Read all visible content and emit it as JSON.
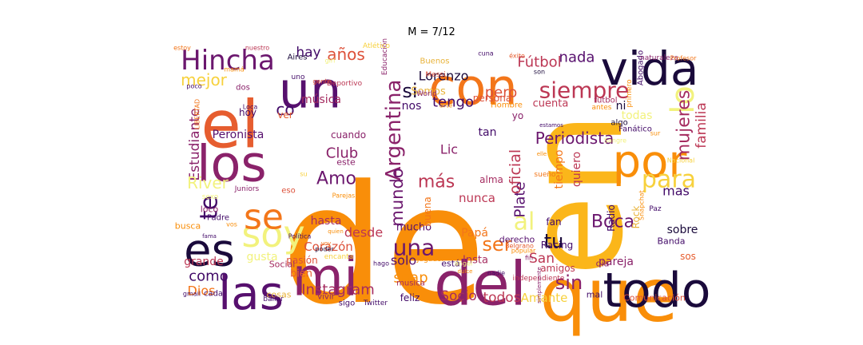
{
  "title": "M = 7/12",
  "palette": [
    "#f98e09",
    "#f7d13d",
    "#f2f27d",
    "#e8b33a",
    "#fbb61a",
    "#bc3754",
    "#e65d2f",
    "#8a226a",
    "#57106e",
    "#1a0a3b",
    "#6b176e",
    "#dd513a",
    "#f3761a",
    "#a52c60",
    "#420a68"
  ],
  "words": [
    {
      "text": "de",
      "color": "#f98e09",
      "rotate": false
    },
    {
      "text": "en",
      "color": "#fbb61a",
      "rotate": true
    },
    {
      "text": "que",
      "color": "#f98e09",
      "rotate": false
    },
    {
      "text": "el",
      "color": "#e65d2f",
      "rotate": false
    },
    {
      "text": "los",
      "color": "#8a226a",
      "rotate": false
    },
    {
      "text": "con",
      "color": "#f3761a",
      "rotate": false
    },
    {
      "text": "vida",
      "color": "#1a0a3b",
      "rotate": false
    },
    {
      "text": "un",
      "color": "#57106e",
      "rotate": false
    },
    {
      "text": "mi",
      "color": "#8a226a",
      "rotate": false
    },
    {
      "text": "las",
      "color": "#57106e",
      "rotate": false
    },
    {
      "text": "del",
      "color": "#8a226a",
      "rotate": false
    },
    {
      "text": "todo",
      "color": "#1a0a3b",
      "rotate": false
    },
    {
      "text": "por",
      "color": "#f98e09",
      "rotate": false
    },
    {
      "text": "es",
      "color": "#1a0a3b",
      "rotate": false
    },
    {
      "text": "soy",
      "color": "#f2f27d",
      "rotate": false
    },
    {
      "text": "se",
      "color": "#f3761a",
      "rotate": false
    },
    {
      "text": "lo",
      "color": "#f2f27d",
      "rotate": true
    },
    {
      "text": "para",
      "color": "#f7d13d",
      "rotate": false
    },
    {
      "text": "siempre",
      "color": "#bc3754",
      "rotate": false
    },
    {
      "text": "Hincha",
      "color": "#6b176e",
      "rotate": false
    },
    {
      "text": "Argentina",
      "color": "#8a226a",
      "rotate": true
    },
    {
      "text": "te",
      "color": "#420a68",
      "rotate": true
    },
    {
      "text": "una",
      "color": "#6b176e",
      "rotate": false
    },
    {
      "text": "Instagram",
      "color": "#a52c60",
      "rotate": false
    },
    {
      "text": "snap",
      "color": "#f98e09",
      "rotate": false
    },
    {
      "text": "sin",
      "color": "#8a226a",
      "rotate": false
    },
    {
      "text": "Boca",
      "color": "#6b176e",
      "rotate": false
    },
    {
      "text": "Amo",
      "color": "#6b176e",
      "rotate": false
    },
    {
      "text": "más",
      "color": "#bc3754",
      "rotate": false
    },
    {
      "text": "al",
      "color": "#f2f27d",
      "rotate": false
    },
    {
      "text": "tu",
      "color": "#1a0a3b",
      "rotate": false
    },
    {
      "text": "ser",
      "color": "#f3761a",
      "rotate": false
    },
    {
      "text": "si",
      "color": "#1a0a3b",
      "rotate": false
    },
    {
      "text": "Lorenzo",
      "color": "#1a0a3b",
      "rotate": false
    },
    {
      "text": "años",
      "color": "#dd513a",
      "rotate": false
    },
    {
      "text": "hay",
      "color": "#420a68",
      "rotate": false
    },
    {
      "text": "mejor",
      "color": "#f7d13d",
      "rotate": false
    },
    {
      "text": "Estudiante",
      "color": "#8a226a",
      "rotate": true
    },
    {
      "text": "River",
      "color": "#f2f27d",
      "rotate": false
    },
    {
      "text": "Club",
      "color": "#8a226a",
      "rotate": false
    },
    {
      "text": "Periodista",
      "color": "#6b176e",
      "rotate": false
    },
    {
      "text": "Fútbol",
      "color": "#bc3754",
      "rotate": false
    },
    {
      "text": "nada",
      "color": "#57106e",
      "rotate": false
    },
    {
      "text": "tengo",
      "color": "#420a68",
      "rotate": false
    },
    {
      "text": "pero",
      "color": "#dd513a",
      "rotate": false
    },
    {
      "text": "co",
      "color": "#420a68",
      "rotate": false
    },
    {
      "text": "mujeres",
      "color": "#a52c60",
      "rotate": true
    },
    {
      "text": "familia",
      "color": "#bc3754",
      "rotate": true
    },
    {
      "text": "mundo",
      "color": "#6b176e",
      "rotate": true
    },
    {
      "text": "Plate",
      "color": "#57106e",
      "rotate": true
    },
    {
      "text": "oficial",
      "color": "#bc3754",
      "rotate": true
    },
    {
      "text": "Corazón",
      "color": "#dd513a",
      "rotate": false
    },
    {
      "text": "desde",
      "color": "#bc3754",
      "rotate": false
    },
    {
      "text": "como",
      "color": "#420a68",
      "rotate": false
    },
    {
      "text": "Dios",
      "color": "#f3761a",
      "rotate": false
    },
    {
      "text": "Socio",
      "color": "#a52c60",
      "rotate": false
    },
    {
      "text": "todos",
      "color": "#bc3754",
      "rotate": false
    },
    {
      "text": "Amante",
      "color": "#f7d13d",
      "rotate": false
    },
    {
      "text": "solo",
      "color": "#57106e",
      "rotate": false
    },
    {
      "text": "San",
      "color": "#bc3754",
      "rotate": false
    },
    {
      "text": "hasta",
      "color": "#a52c60",
      "rotate": false
    },
    {
      "text": "nunca",
      "color": "#bc3754",
      "rotate": false
    },
    {
      "text": "mas",
      "color": "#420a68",
      "rotate": false
    },
    {
      "text": "sobre",
      "color": "#1a0a3b",
      "rotate": false
    },
    {
      "text": "música",
      "color": "#a52c60",
      "rotate": false
    },
    {
      "text": "tiempo",
      "color": "#f3761a",
      "rotate": true
    },
    {
      "text": "quiero",
      "color": "#bc3754",
      "rotate": true
    },
    {
      "text": "Peronista",
      "color": "#57106e",
      "rotate": false
    },
    {
      "text": "gusta",
      "color": "#f2f27d",
      "rotate": false
    },
    {
      "text": "grande",
      "color": "#bc3754",
      "rotate": false
    },
    {
      "text": "pareja",
      "color": "#8a226a",
      "rotate": false
    },
    {
      "text": "Rock",
      "color": "#e8b33a",
      "rotate": true
    },
    {
      "text": "Radio",
      "color": "#420a68",
      "rotate": true
    },
    {
      "text": "cuenta",
      "color": "#bc3754",
      "rotate": false
    },
    {
      "text": "todas",
      "color": "#f2f27d",
      "rotate": false
    },
    {
      "text": "ni",
      "color": "#1a0a3b",
      "rotate": false
    },
    {
      "text": "Lic",
      "color": "#8a226a",
      "rotate": false
    },
    {
      "text": "tan",
      "color": "#420a68",
      "rotate": false
    },
    {
      "text": "yo",
      "color": "#8a226a",
      "rotate": false
    },
    {
      "text": "nos",
      "color": "#420a68",
      "rotate": false
    },
    {
      "text": "Somos",
      "color": "#e8b33a",
      "rotate": false
    },
    {
      "text": "mucho",
      "color": "#57106e",
      "rotate": false
    },
    {
      "text": "buena",
      "color": "#f3761a",
      "rotate": true
    },
    {
      "text": "Papá",
      "color": "#f3761a",
      "rotate": false
    },
    {
      "text": "Insta",
      "color": "#a52c60",
      "rotate": false
    },
    {
      "text": "fan",
      "color": "#420a68",
      "rotate": false
    },
    {
      "text": "amigos",
      "color": "#bc3754",
      "rotate": false
    },
    {
      "text": "alma",
      "color": "#a52c60",
      "rotate": false
    },
    {
      "text": "Racing",
      "color": "#420a68",
      "rotate": false
    },
    {
      "text": "persona",
      "color": "#dd513a",
      "rotate": false
    },
    {
      "text": "cuando",
      "color": "#8a226a",
      "rotate": false
    },
    {
      "text": "este",
      "color": "#8a226a",
      "rotate": false
    },
    {
      "text": "sigo",
      "color": "#420a68",
      "rotate": false
    },
    {
      "text": "hoy",
      "color": "#420a68",
      "rotate": false
    },
    {
      "text": "ver",
      "color": "#e65d2f",
      "rotate": false
    },
    {
      "text": "loco",
      "color": "#8a226a",
      "rotate": false
    },
    {
      "text": "Padre",
      "color": "#420a68",
      "rotate": false
    },
    {
      "text": "bien",
      "color": "#e65d2f",
      "rotate": false
    },
    {
      "text": "pasión",
      "color": "#dd513a",
      "rotate": false
    },
    {
      "text": "Social",
      "color": "#a52c60",
      "rotate": false
    },
    {
      "text": "cosas",
      "color": "#e8b33a",
      "rotate": false
    },
    {
      "text": "vivir",
      "color": "#8a226a",
      "rotate": false
    },
    {
      "text": "feliz",
      "color": "#420a68",
      "rotate": false
    },
    {
      "text": "mal",
      "color": "#420a68",
      "rotate": false
    },
    {
      "text": "Comunicación",
      "color": "#dd513a",
      "rotate": false
    },
    {
      "text": "día",
      "color": "#8a226a",
      "rotate": false
    },
    {
      "text": "derecho",
      "color": "#57106e",
      "rotate": false
    },
    {
      "text": "está",
      "color": "#420a68",
      "rotate": false
    },
    {
      "text": "Banda",
      "color": "#420a68",
      "rotate": false
    },
    {
      "text": "sos",
      "color": "#e65d2f",
      "rotate": false
    },
    {
      "text": "busca",
      "color": "#f98e09",
      "rotate": false
    },
    {
      "text": "Abogado",
      "color": "#420a68",
      "rotate": true
    },
    {
      "text": "Aires",
      "color": "#1a0a3b",
      "rotate": false
    },
    {
      "text": "Buenos",
      "color": "#e8b33a",
      "rotate": false
    },
    {
      "text": "Messi",
      "color": "#dd513a",
      "rotate": false
    },
    {
      "text": "dos",
      "color": "#8a226a",
      "rotate": false
    },
    {
      "text": "Hombre",
      "color": "#f98e09",
      "rotate": false
    },
    {
      "text": "futbol",
      "color": "#a52c60",
      "rotate": false
    },
    {
      "text": "Fanático",
      "color": "#420a68",
      "rotate": false
    },
    {
      "text": "algo",
      "color": "#1a0a3b",
      "rotate": false
    },
    {
      "text": "eso",
      "color": "#dd513a",
      "rotate": false
    },
    {
      "text": "Juniors",
      "color": "#8a226a",
      "rotate": false
    },
    {
      "text": "sexo",
      "color": "#f2f27d",
      "rotate": false
    },
    {
      "text": "musica",
      "color": "#a52c60",
      "rotate": false
    },
    {
      "text": "Jugador",
      "color": "#f98e09",
      "rotate": false
    },
    {
      "text": "Deportivo",
      "color": "#bc3754",
      "rotate": false
    },
    {
      "text": "LIBERTAD",
      "color": "#f3761a",
      "rotate": true
    },
    {
      "text": "Loca",
      "color": "#420a68",
      "rotate": false
    },
    {
      "text": "World",
      "color": "#8a226a",
      "rotate": false
    },
    {
      "text": "sueño",
      "color": "#f3761a",
      "rotate": false
    },
    {
      "text": "primero",
      "color": "#f98e09",
      "rotate": true
    },
    {
      "text": "antes",
      "color": "#f98e09",
      "rotate": false
    },
    {
      "text": "Belgrano",
      "color": "#e65d2f",
      "rotate": false
    },
    {
      "text": "independiente",
      "color": "#bc3754",
      "rotate": false
    },
    {
      "text": "Twitter",
      "color": "#420a68",
      "rotate": false
    },
    {
      "text": "encanta",
      "color": "#f7d13d",
      "rotate": false
    },
    {
      "text": "Paz",
      "color": "#420a68",
      "rotate": false
    },
    {
      "text": "cada",
      "color": "#420a68",
      "rotate": false
    },
    {
      "text": "Educación",
      "color": "#8a226a",
      "rotate": true
    },
    {
      "text": "Atlético",
      "color": "#f7d13d",
      "rotate": false
    },
    {
      "text": "uno",
      "color": "#420a68",
      "rotate": false
    },
    {
      "text": "mamá",
      "color": "#f98e09",
      "rotate": false
    },
    {
      "text": "poco",
      "color": "#420a68",
      "rotate": false
    },
    {
      "text": "gente",
      "color": "#dd513a",
      "rotate": false
    },
    {
      "text": "éxito",
      "color": "#e65d2f",
      "rotate": false
    },
    {
      "text": "naturaleza",
      "color": "#8a226a",
      "rotate": false
    },
    {
      "text": "Profesor",
      "color": "#f3761a",
      "rotate": false
    },
    {
      "text": "estoy",
      "color": "#f3761a",
      "rotate": false
    },
    {
      "text": "nuestro",
      "color": "#bc3754",
      "rotate": false
    },
    {
      "text": "estamos",
      "color": "#420a68",
      "rotate": false
    },
    {
      "text": "fama",
      "color": "#420a68",
      "rotate": false
    },
    {
      "text": "nadie",
      "color": "#420a68",
      "rotate": false
    },
    {
      "text": "Snapchat",
      "color": "#f98e09",
      "rotate": true
    },
    {
      "text": "Nacional",
      "color": "#f7d13d",
      "rotate": false
    },
    {
      "text": "Parejas",
      "color": "#f98e09",
      "rotate": false
    },
    {
      "text": "arte",
      "color": "#f98e09",
      "rotate": false
    },
    {
      "text": "hago",
      "color": "#420a68",
      "rotate": false
    },
    {
      "text": "poder",
      "color": "#1a0a3b",
      "rotate": false
    },
    {
      "text": "voy",
      "color": "#f3761a",
      "rotate": false
    },
    {
      "text": "popular",
      "color": "#f98e09",
      "rotate": false
    },
    {
      "text": "fin",
      "color": "#8a226a",
      "rotate": false
    },
    {
      "text": "gmail",
      "color": "#420a68",
      "rotate": false
    },
    {
      "text": "Política",
      "color": "#420a68",
      "rotate": false
    },
    {
      "text": "quien",
      "color": "#f98e09",
      "rotate": false
    },
    {
      "text": "simplemente",
      "color": "#8a226a",
      "rotate": true
    },
    {
      "text": "ángel",
      "color": "#f2f27d",
      "rotate": false
    },
    {
      "text": "dulce",
      "color": "#f98e09",
      "rotate": false
    },
    {
      "text": "Sangre",
      "color": "#f2f27d",
      "rotate": false
    },
    {
      "text": "cuna",
      "color": "#420a68",
      "rotate": false
    },
    {
      "text": "son",
      "color": "#1a0a3b",
      "rotate": false
    },
    {
      "text": "sur",
      "color": "#f98e09",
      "rotate": false
    },
    {
      "text": "su",
      "color": "#f7d13d",
      "rotate": false
    },
    {
      "text": "vos",
      "color": "#f98e09",
      "rotate": false
    },
    {
      "text": "elle",
      "color": "#f98e09",
      "rotate": false
    },
    {
      "text": "bailar",
      "color": "#420a68",
      "rotate": false
    },
    {
      "text": "girl",
      "color": "#f2f27d",
      "rotate": false
    },
    {
      "text": "van",
      "color": "#420a68",
      "rotate": false
    },
    {
      "text": "triste",
      "color": "#420a68",
      "rotate": false
    }
  ]
}
